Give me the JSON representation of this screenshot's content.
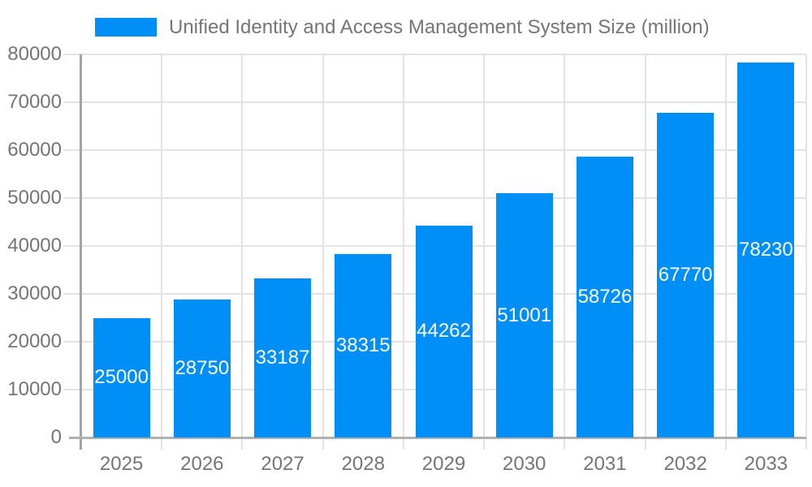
{
  "chart_data": {
    "type": "bar",
    "title": "Unified Identity and Access Management System Size (million)",
    "categories": [
      "2025",
      "2026",
      "2027",
      "2028",
      "2029",
      "2030",
      "2031",
      "2032",
      "2033"
    ],
    "values": [
      25000,
      28750,
      33187,
      38315,
      44262,
      51001,
      58726,
      67770,
      78230
    ],
    "series_name": "Unified Identity and Access Management System Size (million)",
    "xlabel": "",
    "ylabel": "",
    "ylim": [
      0,
      80000
    ],
    "yticks": [
      0,
      10000,
      20000,
      30000,
      40000,
      50000,
      60000,
      70000,
      80000
    ],
    "grid": true,
    "legend_position": "top-left",
    "bar_color": "#008ff7",
    "value_label_color": "#ffffff",
    "axis_text_color": "#757575",
    "grid_color": "#e3e3e3",
    "y_axis_line_color": "#a4a4a4",
    "x_axis_line_color": "#b0b0b0",
    "background_color": "#ffffff"
  }
}
